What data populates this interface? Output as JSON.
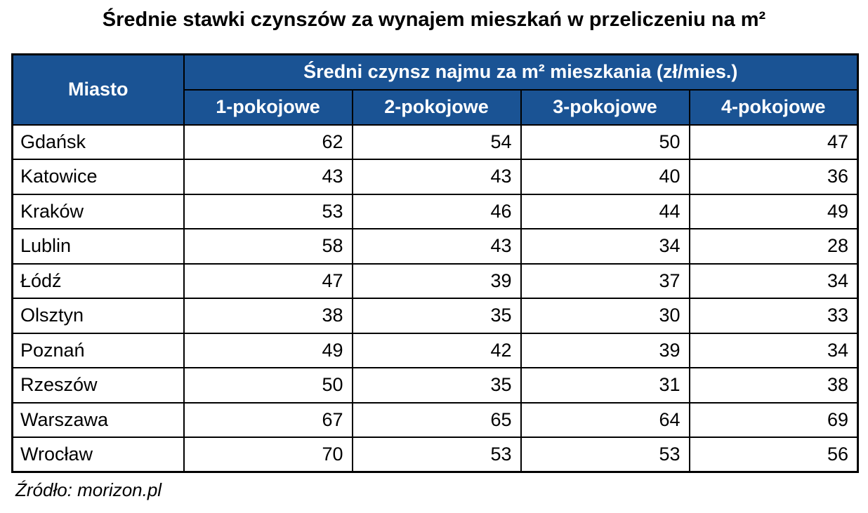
{
  "colors": {
    "header_bg": "#1A5394",
    "header_text": "#FFFFFF",
    "border": "#000000"
  },
  "chart_data": {
    "type": "table",
    "title": "Średnie stawki czynszów za wynajem mieszkań w przeliczeniu na m²",
    "row_header": "Miasto",
    "group_header": "Średni czynsz najmu za m² mieszkania (zł/mies.)",
    "columns": [
      "1-pokojowe",
      "2-pokojowe",
      "3-pokojowe",
      "4-pokojowe"
    ],
    "rows": [
      [
        "Gdańsk",
        62,
        54,
        50,
        47
      ],
      [
        "Katowice",
        43,
        43,
        40,
        36
      ],
      [
        "Kraków",
        53,
        46,
        44,
        49
      ],
      [
        "Lublin",
        58,
        43,
        34,
        28
      ],
      [
        "Łódź",
        47,
        39,
        37,
        34
      ],
      [
        "Olsztyn",
        38,
        35,
        30,
        33
      ],
      [
        "Poznań",
        49,
        42,
        39,
        34
      ],
      [
        "Rzeszów",
        50,
        35,
        31,
        38
      ],
      [
        "Warszawa",
        67,
        65,
        64,
        69
      ],
      [
        "Wrocław",
        70,
        53,
        53,
        56
      ]
    ],
    "source": "Źródło: morizon.pl"
  }
}
